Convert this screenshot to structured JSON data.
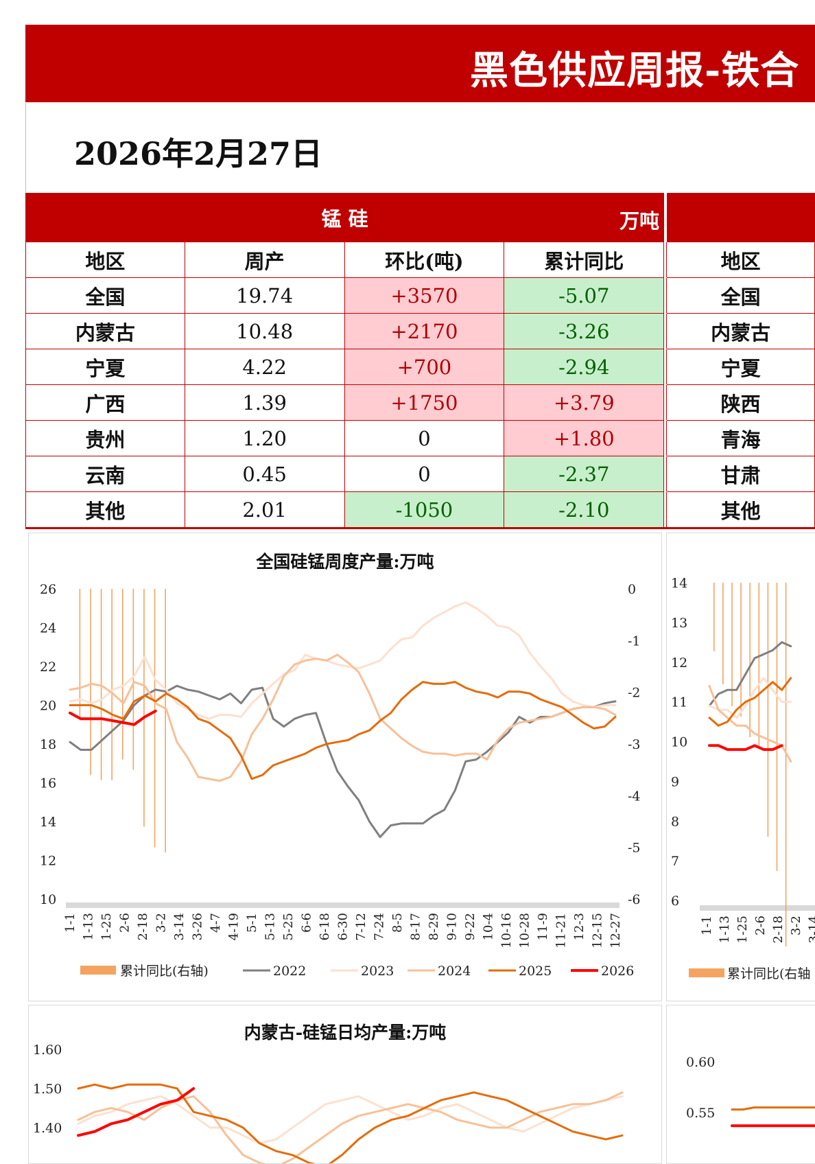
{
  "title": "黑色供应周报-铁合",
  "date": "2026年2月27日",
  "table": {
    "section_name": "锰 硅",
    "unit": "万吨",
    "headers": [
      "地区",
      "周产",
      "环比(吨)",
      "累计同比",
      "地区"
    ],
    "rows": [
      {
        "region": "全国",
        "weekly": "19.74",
        "wow": "+3570",
        "wow_sign": "pos",
        "ytd": "-5.07",
        "ytd_sign": "neg",
        "region2": "全国"
      },
      {
        "region": "内蒙古",
        "weekly": "10.48",
        "wow": "+2170",
        "wow_sign": "pos",
        "ytd": "-3.26",
        "ytd_sign": "neg",
        "region2": "内蒙古"
      },
      {
        "region": "宁夏",
        "weekly": "4.22",
        "wow": "+700",
        "wow_sign": "pos",
        "ytd": "-2.94",
        "ytd_sign": "neg",
        "region2": "宁夏"
      },
      {
        "region": "广西",
        "weekly": "1.39",
        "wow": "+1750",
        "wow_sign": "pos",
        "ytd": "+3.79",
        "ytd_sign": "pos",
        "region2": "陕西"
      },
      {
        "region": "贵州",
        "weekly": "1.20",
        "wow": "0",
        "wow_sign": "none",
        "ytd": "+1.80",
        "ytd_sign": "pos",
        "region2": "青海"
      },
      {
        "region": "云南",
        "weekly": "0.45",
        "wow": "0",
        "wow_sign": "none",
        "ytd": "-2.37",
        "ytd_sign": "neg",
        "region2": "甘肃"
      },
      {
        "region": "其他",
        "weekly": "2.01",
        "wow": "-1050",
        "wow_sign": "neg",
        "ytd": "-2.10",
        "ytd_sign": "neg",
        "region2": "其他"
      }
    ]
  },
  "colors": {
    "brand_red": "#c00000",
    "s2022": "#7f7f7f",
    "s2023": "#fde0cf",
    "s2024": "#f8c096",
    "s2025": "#e46c0a",
    "s2026": "#ff0000",
    "ytd_bar": "#f4a460"
  },
  "chart_data": [
    {
      "type": "line",
      "title": "全国硅锰周度产量:万吨",
      "x_ticks": [
        "1-1",
        "1-13",
        "1-25",
        "2-6",
        "2-18",
        "3-2",
        "3-14",
        "3-26",
        "4-7",
        "4-19",
        "5-1",
        "5-13",
        "5-25",
        "6-6",
        "6-18",
        "6-30",
        "7-12",
        "7-24",
        "8-5",
        "8-17",
        "8-29",
        "9-10",
        "9-22",
        "10-4",
        "10-16",
        "10-28",
        "11-9",
        "11-21",
        "12-3",
        "12-15",
        "12-27"
      ],
      "ylim": [
        10,
        26
      ],
      "y_ticks": [
        "26",
        "24",
        "22",
        "20",
        "18",
        "16",
        "14",
        "12",
        "10"
      ],
      "y2lim": [
        -6,
        0
      ],
      "y2_ticks": [
        "0",
        "-1",
        "-2",
        "-3",
        "-4",
        "-5",
        "-6"
      ],
      "legend": [
        "累计同比(右轴)",
        "2022",
        "2023",
        "2024",
        "2025",
        "2026"
      ],
      "series": [
        {
          "name": "2022",
          "color_key": "s2022",
          "values": [
            18.1,
            17.7,
            17.7,
            18.2,
            18.7,
            19.2,
            20.0,
            20.5,
            20.8,
            20.7,
            21.0,
            20.8,
            20.7,
            20.5,
            20.3,
            20.6,
            20.1,
            20.8,
            20.9,
            19.3,
            18.9,
            19.3,
            19.5,
            19.6,
            18.0,
            16.6,
            15.8,
            15.1,
            14.0,
            13.2,
            13.8,
            13.9,
            13.9,
            13.9,
            14.3,
            14.6,
            15.6,
            17.1,
            17.2,
            17.6,
            18.1,
            18.6,
            19.4,
            19.1,
            19.4,
            19.4,
            19.6,
            19.8,
            19.9,
            19.9,
            20.1,
            20.2
          ]
        },
        {
          "name": "2023",
          "color_key": "s2023",
          "values": [
            20.2,
            20.3,
            20.1,
            20.3,
            20.8,
            21.0,
            21.5,
            22.5,
            21.3,
            20.8,
            20.1,
            19.8,
            19.5,
            19.3,
            19.5,
            19.5,
            19.4,
            20.1,
            20.6,
            21.1,
            21.6,
            21.8,
            22.6,
            22.4,
            22.3,
            22.1,
            22.0,
            21.9,
            22.1,
            22.3,
            22.9,
            23.4,
            23.5,
            24.1,
            24.5,
            24.8,
            25.1,
            25.3,
            25.0,
            24.6,
            24.1,
            24.0,
            23.6,
            22.7,
            22.0,
            21.4,
            20.6,
            20.2,
            20.0,
            19.9,
            20.0,
            20.0
          ]
        },
        {
          "name": "2024",
          "color_key": "s2024",
          "values": [
            20.8,
            20.9,
            21.1,
            21.0,
            20.6,
            20.1,
            21.2,
            21.0,
            20.1,
            19.8,
            18.1,
            17.3,
            16.3,
            16.2,
            16.1,
            16.3,
            17.1,
            18.5,
            19.3,
            20.3,
            21.5,
            22.1,
            22.3,
            22.4,
            22.3,
            22.6,
            22.2,
            21.7,
            20.6,
            19.3,
            18.8,
            18.3,
            17.9,
            17.6,
            17.5,
            17.5,
            17.4,
            17.5,
            17.5,
            17.2,
            18.2,
            18.8,
            19.1,
            19.2,
            19.3,
            19.4,
            19.6,
            19.8,
            19.9,
            19.9,
            19.8,
            19.5
          ]
        },
        {
          "name": "2025",
          "color_key": "s2025",
          "values": [
            20.0,
            20.0,
            20.0,
            19.8,
            19.5,
            19.3,
            20.2,
            20.5,
            20.2,
            20.6,
            20.3,
            19.9,
            19.3,
            19.1,
            18.7,
            18.3,
            17.4,
            16.2,
            16.4,
            16.9,
            17.1,
            17.3,
            17.5,
            17.8,
            18.0,
            18.1,
            18.2,
            18.5,
            18.7,
            19.2,
            19.6,
            20.3,
            20.8,
            21.2,
            21.1,
            21.1,
            21.2,
            20.9,
            20.7,
            20.6,
            20.4,
            20.7,
            20.7,
            20.6,
            20.3,
            20.1,
            19.9,
            19.5,
            19.1,
            18.8,
            18.9,
            19.4
          ]
        },
        {
          "name": "2026",
          "color_key": "s2026",
          "values": [
            19.6,
            19.3,
            19.3,
            19.3,
            19.2,
            19.1,
            19.0,
            19.4,
            19.7
          ]
        },
        {
          "name": "累计同比(右轴)",
          "color_key": "ytd_bar",
          "axis": "right",
          "type": "bar",
          "values": [
            -2.5,
            -3.6,
            -3.7,
            -3.7,
            -3.3,
            -3.5,
            -4.6,
            -5.0,
            -5.1
          ]
        }
      ]
    },
    {
      "type": "line",
      "title": "",
      "x_ticks": [
        "1-1",
        "1-13",
        "1-25",
        "2-6",
        "2-18",
        "3-2",
        "3-14"
      ],
      "ylim": [
        6,
        14
      ],
      "y_ticks": [
        "14",
        "13",
        "12",
        "11",
        "10",
        "9",
        "8",
        "7",
        "6"
      ],
      "legend": [
        "累计同比(右轴"
      ],
      "series": [
        {
          "name": "2022",
          "color_key": "s2022",
          "values": [
            10.9,
            11.2,
            11.3,
            11.3,
            11.7,
            12.1,
            12.2,
            12.3,
            12.5,
            12.4
          ]
        },
        {
          "name": "2023",
          "color_key": "s2023",
          "values": [
            10.9,
            10.8,
            10.8,
            10.6,
            10.9,
            11.3,
            11.6,
            11.3,
            11.0,
            11.0
          ]
        },
        {
          "name": "2024",
          "color_key": "s2024",
          "values": [
            11.4,
            10.8,
            10.6,
            10.4,
            10.4,
            10.2,
            10.1,
            10.0,
            9.9,
            9.5
          ]
        },
        {
          "name": "2025",
          "color_key": "s2025",
          "values": [
            10.6,
            10.4,
            10.5,
            10.8,
            11.0,
            11.1,
            11.3,
            11.5,
            11.3,
            11.6
          ]
        },
        {
          "name": "2026",
          "color_key": "s2026",
          "values": [
            9.9,
            9.9,
            9.8,
            9.8,
            9.8,
            9.9,
            9.8,
            9.8,
            9.9
          ]
        }
      ]
    },
    {
      "type": "line",
      "title": "内蒙古-硅锰日均产量:万吨",
      "y_ticks": [
        "1.60",
        "1.50",
        "1.40"
      ],
      "ylim": [
        1.3,
        1.6
      ],
      "series": [
        {
          "name": "2023",
          "color_key": "s2023",
          "values": [
            1.41,
            1.43,
            1.44,
            1.46,
            1.47,
            1.48,
            1.46,
            1.43,
            1.4,
            1.4,
            1.38,
            1.36,
            1.37,
            1.4,
            1.43,
            1.46,
            1.47,
            1.48,
            1.46,
            1.44,
            1.42,
            1.43,
            1.45,
            1.46,
            1.44,
            1.42,
            1.4,
            1.39,
            1.41,
            1.43,
            1.45,
            1.46,
            1.47,
            1.48
          ]
        },
        {
          "name": "2024",
          "color_key": "s2024",
          "values": [
            1.42,
            1.44,
            1.45,
            1.44,
            1.42,
            1.45,
            1.47,
            1.48,
            1.44,
            1.38,
            1.33,
            1.31,
            1.3,
            1.32,
            1.35,
            1.38,
            1.41,
            1.43,
            1.44,
            1.45,
            1.46,
            1.45,
            1.44,
            1.42,
            1.41,
            1.4,
            1.4,
            1.42,
            1.44,
            1.45,
            1.46,
            1.46,
            1.47,
            1.49
          ]
        },
        {
          "name": "2025",
          "color_key": "s2025",
          "values": [
            1.5,
            1.51,
            1.5,
            1.51,
            1.51,
            1.51,
            1.5,
            1.44,
            1.43,
            1.42,
            1.4,
            1.36,
            1.34,
            1.33,
            1.31,
            1.3,
            1.33,
            1.37,
            1.4,
            1.42,
            1.43,
            1.45,
            1.47,
            1.48,
            1.49,
            1.48,
            1.47,
            1.45,
            1.43,
            1.41,
            1.39,
            1.38,
            1.37,
            1.38
          ]
        },
        {
          "name": "2026",
          "color_key": "s2026",
          "values": [
            1.38,
            1.39,
            1.41,
            1.42,
            1.44,
            1.46,
            1.47,
            1.5
          ]
        }
      ]
    },
    {
      "type": "line",
      "title": "",
      "y_ticks": [
        "0.60",
        "0.55"
      ],
      "ylim": [
        0.5,
        0.62
      ],
      "series": [
        {
          "name": "2025",
          "color_key": "s2025",
          "values": [
            0.553,
            0.553,
            0.555,
            0.555,
            0.555,
            0.555,
            0.555,
            0.555,
            0.555,
            0.555
          ]
        },
        {
          "name": "2026",
          "color_key": "s2026",
          "values": [
            0.537,
            0.537,
            0.537,
            0.537,
            0.537,
            0.537,
            0.537,
            0.537,
            0.537,
            0.537
          ]
        }
      ]
    }
  ]
}
